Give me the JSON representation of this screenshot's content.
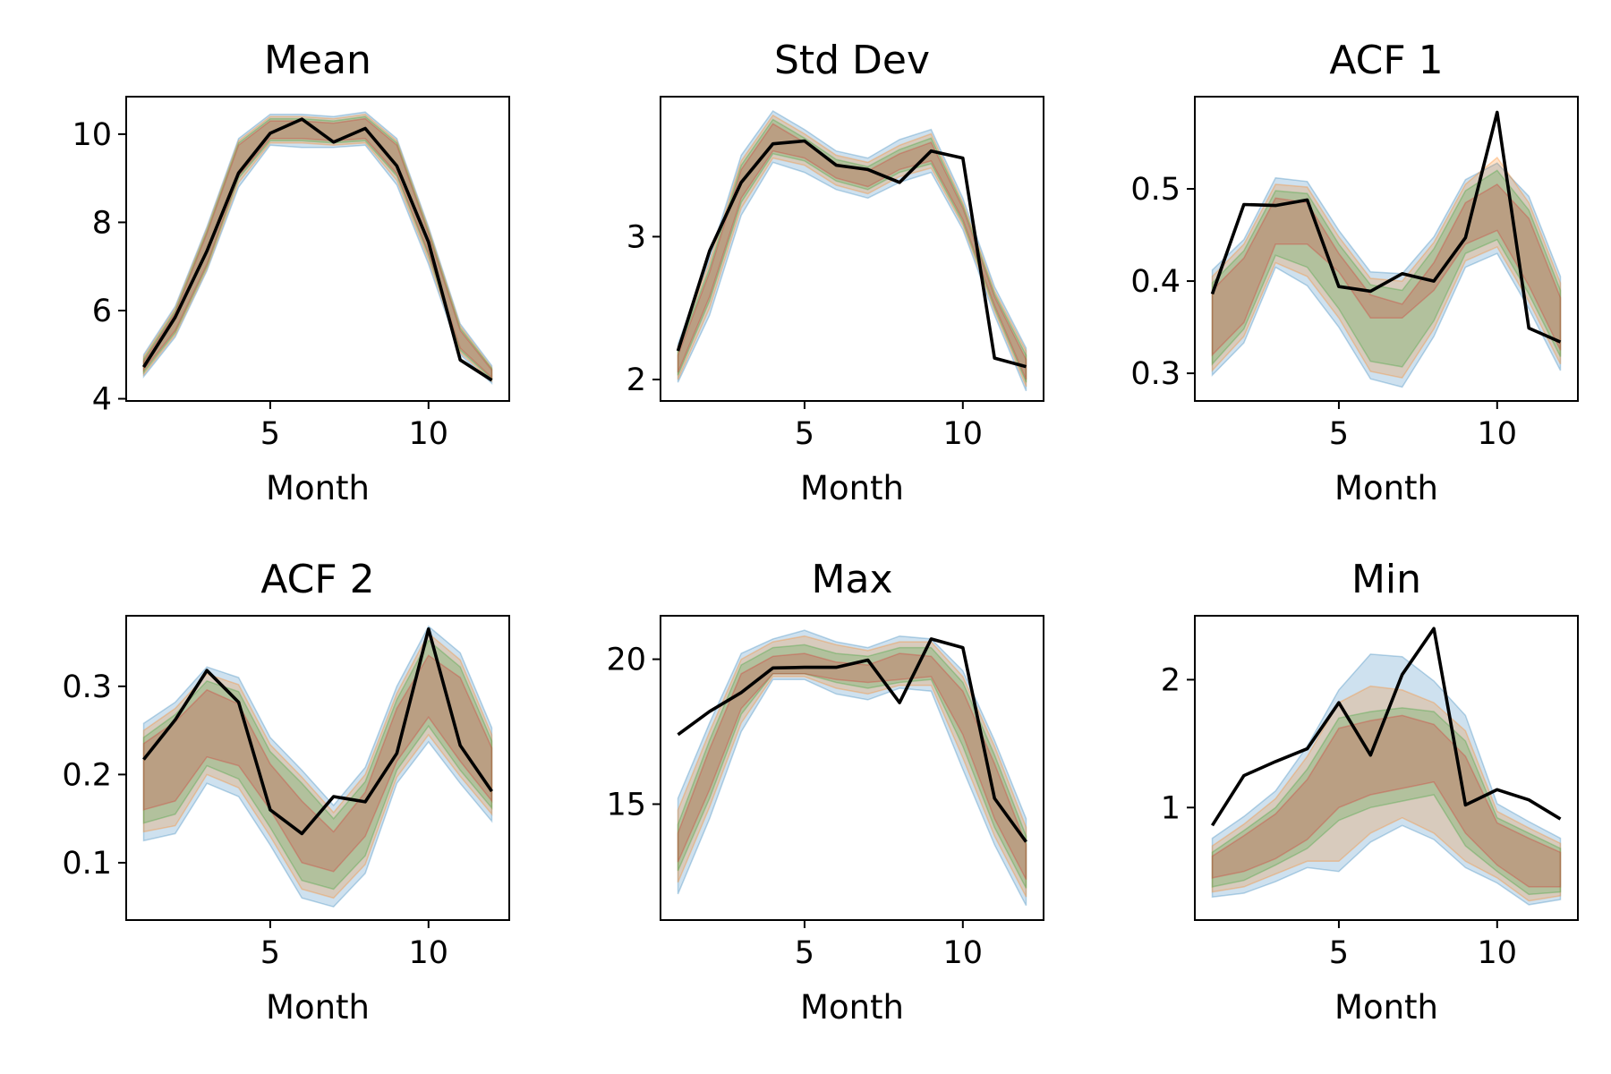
{
  "band_colors": {
    "blue": "#1f77b4",
    "orange": "#ff7f0e",
    "green": "#2ca02c",
    "red": "#d62728",
    "line": "#000000"
  },
  "chart_data": [
    {
      "type": "line",
      "title": "Mean",
      "xlabel": "Month",
      "ylabel": "",
      "x": [
        1,
        2,
        3,
        4,
        5,
        6,
        7,
        8,
        9,
        10,
        11,
        12
      ],
      "xlim": [
        0.45,
        12.55
      ],
      "ylim": [
        3.95,
        10.85
      ],
      "xticks": [
        5,
        10
      ],
      "yticks": [
        4,
        6,
        8,
        10
      ],
      "series": [
        {
          "values": [
            4.72,
            5.85,
            7.35,
            9.12,
            10.02,
            10.34,
            9.82,
            10.13,
            9.28,
            7.55,
            4.88,
            4.42
          ]
        }
      ],
      "bands": [
        {
          "color": "#1f77b4",
          "lower": [
            4.5,
            5.4,
            6.9,
            8.8,
            9.75,
            9.7,
            9.7,
            9.75,
            8.85,
            7.05,
            5.0,
            4.35
          ],
          "upper": [
            5.0,
            6.1,
            7.9,
            9.9,
            10.45,
            10.45,
            10.4,
            10.5,
            9.9,
            7.9,
            5.7,
            4.75
          ]
        },
        {
          "color": "#ff7f0e",
          "lower": [
            4.55,
            5.45,
            6.95,
            8.9,
            9.8,
            9.8,
            9.75,
            9.8,
            8.95,
            7.15,
            5.05,
            4.4
          ],
          "upper": [
            4.95,
            6.05,
            7.85,
            9.85,
            10.4,
            10.4,
            10.35,
            10.45,
            9.85,
            7.85,
            5.65,
            4.7
          ]
        },
        {
          "color": "#2ca02c",
          "lower": [
            4.6,
            5.5,
            7.0,
            9.0,
            9.85,
            9.85,
            9.8,
            9.85,
            9.05,
            7.25,
            5.1,
            4.45
          ],
          "upper": [
            4.9,
            6.0,
            7.8,
            9.8,
            10.35,
            10.35,
            10.3,
            10.4,
            9.8,
            7.8,
            5.6,
            4.68
          ]
        },
        {
          "color": "#d62728",
          "lower": [
            4.65,
            5.55,
            7.05,
            9.05,
            9.9,
            9.9,
            9.85,
            9.9,
            9.1,
            7.3,
            5.15,
            4.48
          ],
          "upper": [
            4.85,
            5.95,
            7.75,
            9.75,
            10.3,
            10.3,
            10.25,
            10.35,
            9.75,
            7.75,
            5.55,
            4.65
          ]
        }
      ]
    },
    {
      "type": "line",
      "title": "Std Dev",
      "xlabel": "Month",
      "ylabel": "",
      "x": [
        1,
        2,
        3,
        4,
        5,
        6,
        7,
        8,
        9,
        10,
        11,
        12
      ],
      "xlim": [
        0.45,
        12.55
      ],
      "ylim": [
        1.85,
        3.98
      ],
      "xticks": [
        5,
        10
      ],
      "yticks": [
        2,
        3
      ],
      "series": [
        {
          "values": [
            2.2,
            2.9,
            3.38,
            3.65,
            3.67,
            3.5,
            3.47,
            3.38,
            3.6,
            3.55,
            2.15,
            2.09
          ]
        }
      ],
      "bands": [
        {
          "color": "#1f77b4",
          "lower": [
            1.98,
            2.45,
            3.15,
            3.52,
            3.45,
            3.33,
            3.27,
            3.38,
            3.45,
            3.05,
            2.45,
            1.92
          ],
          "upper": [
            2.25,
            2.85,
            3.57,
            3.88,
            3.75,
            3.6,
            3.55,
            3.68,
            3.75,
            3.27,
            2.65,
            2.22
          ]
        },
        {
          "color": "#ff7f0e",
          "lower": [
            2.0,
            2.5,
            3.2,
            3.55,
            3.5,
            3.36,
            3.3,
            3.42,
            3.48,
            3.08,
            2.48,
            1.95
          ],
          "upper": [
            2.23,
            2.82,
            3.53,
            3.85,
            3.72,
            3.57,
            3.52,
            3.64,
            3.72,
            3.24,
            2.62,
            2.2
          ]
        },
        {
          "color": "#2ca02c",
          "lower": [
            2.03,
            2.55,
            3.24,
            3.58,
            3.53,
            3.39,
            3.33,
            3.45,
            3.51,
            3.1,
            2.5,
            1.98
          ],
          "upper": [
            2.2,
            2.78,
            3.5,
            3.82,
            3.69,
            3.54,
            3.49,
            3.61,
            3.69,
            3.22,
            2.6,
            2.17
          ]
        },
        {
          "color": "#d62728",
          "lower": [
            2.05,
            2.58,
            3.27,
            3.6,
            3.55,
            3.41,
            3.35,
            3.47,
            3.53,
            3.12,
            2.52,
            2.0
          ],
          "upper": [
            2.17,
            2.75,
            3.47,
            3.79,
            3.66,
            3.51,
            3.46,
            3.58,
            3.66,
            3.2,
            2.58,
            2.14
          ]
        }
      ]
    },
    {
      "type": "line",
      "title": "ACF 1",
      "xlabel": "Month",
      "ylabel": "",
      "x": [
        1,
        2,
        3,
        4,
        5,
        6,
        7,
        8,
        9,
        10,
        11,
        12
      ],
      "xlim": [
        0.45,
        12.55
      ],
      "ylim": [
        0.27,
        0.6
      ],
      "xticks": [
        5,
        10
      ],
      "yticks": [
        0.3,
        0.4,
        0.5
      ],
      "series": [
        {
          "values": [
            0.386,
            0.483,
            0.482,
            0.488,
            0.394,
            0.389,
            0.408,
            0.4,
            0.447,
            0.583,
            0.349,
            0.334
          ]
        }
      ],
      "bands": [
        {
          "color": "#1f77b4",
          "lower": [
            0.298,
            0.333,
            0.415,
            0.395,
            0.35,
            0.294,
            0.285,
            0.34,
            0.415,
            0.43,
            0.37,
            0.303
          ],
          "upper": [
            0.412,
            0.445,
            0.512,
            0.508,
            0.455,
            0.41,
            0.408,
            0.448,
            0.51,
            0.528,
            0.492,
            0.405
          ]
        },
        {
          "color": "#ff7f0e",
          "lower": [
            0.303,
            0.34,
            0.42,
            0.405,
            0.36,
            0.302,
            0.295,
            0.348,
            0.422,
            0.437,
            0.378,
            0.31
          ],
          "upper": [
            0.405,
            0.44,
            0.505,
            0.502,
            0.448,
            0.403,
            0.4,
            0.442,
            0.505,
            0.534,
            0.485,
            0.398
          ]
        },
        {
          "color": "#2ca02c",
          "lower": [
            0.31,
            0.348,
            0.428,
            0.415,
            0.37,
            0.313,
            0.307,
            0.357,
            0.43,
            0.445,
            0.386,
            0.318
          ],
          "upper": [
            0.398,
            0.433,
            0.498,
            0.495,
            0.44,
            0.396,
            0.39,
            0.435,
            0.498,
            0.52,
            0.477,
            0.39
          ]
        },
        {
          "color": "#d62728",
          "lower": [
            0.32,
            0.355,
            0.44,
            0.44,
            0.41,
            0.36,
            0.36,
            0.39,
            0.44,
            0.455,
            0.395,
            0.325
          ],
          "upper": [
            0.39,
            0.425,
            0.49,
            0.485,
            0.43,
            0.385,
            0.375,
            0.42,
            0.485,
            0.505,
            0.468,
            0.382
          ]
        }
      ]
    },
    {
      "type": "line",
      "title": "ACF 2",
      "xlabel": "Month",
      "ylabel": "",
      "x": [
        1,
        2,
        3,
        4,
        5,
        6,
        7,
        8,
        9,
        10,
        11,
        12
      ],
      "xlim": [
        0.45,
        12.55
      ],
      "ylim": [
        0.035,
        0.38
      ],
      "xticks": [
        5,
        10
      ],
      "yticks": [
        0.1,
        0.2,
        0.3
      ],
      "series": [
        {
          "values": [
            0.217,
            0.262,
            0.318,
            0.282,
            0.16,
            0.133,
            0.175,
            0.169,
            0.224,
            0.365,
            0.233,
            0.181
          ]
        }
      ],
      "bands": [
        {
          "color": "#1f77b4",
          "lower": [
            0.125,
            0.133,
            0.19,
            0.175,
            0.12,
            0.06,
            0.05,
            0.088,
            0.19,
            0.237,
            0.19,
            0.147
          ],
          "upper": [
            0.258,
            0.282,
            0.322,
            0.31,
            0.242,
            0.205,
            0.165,
            0.208,
            0.3,
            0.368,
            0.338,
            0.253
          ]
        },
        {
          "color": "#ff7f0e",
          "lower": [
            0.135,
            0.142,
            0.2,
            0.185,
            0.13,
            0.07,
            0.06,
            0.098,
            0.197,
            0.245,
            0.198,
            0.155
          ],
          "upper": [
            0.25,
            0.275,
            0.314,
            0.302,
            0.234,
            0.197,
            0.157,
            0.2,
            0.292,
            0.36,
            0.33,
            0.245
          ]
        },
        {
          "color": "#2ca02c",
          "lower": [
            0.145,
            0.155,
            0.21,
            0.195,
            0.14,
            0.08,
            0.07,
            0.108,
            0.205,
            0.255,
            0.205,
            0.162
          ],
          "upper": [
            0.242,
            0.268,
            0.306,
            0.294,
            0.226,
            0.19,
            0.15,
            0.192,
            0.285,
            0.352,
            0.322,
            0.238
          ]
        },
        {
          "color": "#d62728",
          "lower": [
            0.16,
            0.17,
            0.22,
            0.21,
            0.16,
            0.1,
            0.09,
            0.13,
            0.215,
            0.265,
            0.215,
            0.17
          ],
          "upper": [
            0.235,
            0.26,
            0.296,
            0.28,
            0.212,
            0.17,
            0.135,
            0.18,
            0.275,
            0.335,
            0.31,
            0.23
          ]
        }
      ]
    },
    {
      "type": "line",
      "title": "Max",
      "xlabel": "Month",
      "ylabel": "",
      "x": [
        1,
        2,
        3,
        4,
        5,
        6,
        7,
        8,
        9,
        10,
        11,
        12
      ],
      "xlim": [
        0.45,
        12.55
      ],
      "ylim": [
        11.0,
        21.5
      ],
      "xticks": [
        5,
        10
      ],
      "yticks": [
        15,
        20
      ],
      "series": [
        {
          "values": [
            17.4,
            18.2,
            18.85,
            19.7,
            19.72,
            19.72,
            19.97,
            18.5,
            20.7,
            20.4,
            15.2,
            13.7
          ]
        }
      ],
      "bands": [
        {
          "color": "#1f77b4",
          "lower": [
            11.9,
            14.5,
            17.5,
            19.3,
            19.3,
            18.8,
            18.6,
            19.0,
            18.9,
            16.2,
            13.6,
            11.5
          ],
          "upper": [
            15.2,
            17.8,
            20.2,
            20.7,
            21.0,
            20.6,
            20.4,
            20.8,
            20.7,
            19.6,
            17.2,
            14.5
          ]
        },
        {
          "color": "#ff7f0e",
          "lower": [
            12.3,
            14.9,
            17.8,
            19.4,
            19.4,
            19.0,
            18.8,
            19.1,
            19.1,
            16.6,
            13.9,
            11.8
          ],
          "upper": [
            14.8,
            17.5,
            20.0,
            20.6,
            20.8,
            20.5,
            20.3,
            20.6,
            20.6,
            19.4,
            17.0,
            14.2
          ]
        },
        {
          "color": "#2ca02c",
          "lower": [
            12.7,
            15.2,
            18.1,
            19.5,
            19.5,
            19.2,
            19.0,
            19.2,
            19.3,
            17.0,
            14.2,
            12.1
          ],
          "upper": [
            14.3,
            17.2,
            19.8,
            20.4,
            20.5,
            20.2,
            20.1,
            20.4,
            20.4,
            19.2,
            16.7,
            13.9
          ]
        },
        {
          "color": "#d62728",
          "lower": [
            13.0,
            15.5,
            18.3,
            19.5,
            19.5,
            19.3,
            19.2,
            19.3,
            19.4,
            17.4,
            14.5,
            12.4
          ],
          "upper": [
            14.0,
            16.9,
            19.5,
            20.1,
            20.2,
            19.9,
            19.8,
            20.2,
            20.1,
            18.9,
            16.4,
            13.6
          ]
        }
      ]
    },
    {
      "type": "line",
      "title": "Min",
      "xlabel": "Month",
      "ylabel": "",
      "x": [
        1,
        2,
        3,
        4,
        5,
        6,
        7,
        8,
        9,
        10,
        11,
        12
      ],
      "xlim": [
        0.45,
        12.55
      ],
      "ylim": [
        0.12,
        2.5
      ],
      "xticks": [
        5,
        10
      ],
      "yticks": [
        1,
        2
      ],
      "series": [
        {
          "values": [
            0.86,
            1.25,
            1.36,
            1.46,
            1.82,
            1.41,
            2.04,
            2.4,
            1.02,
            1.14,
            1.06,
            0.91
          ]
        }
      ],
      "bands": [
        {
          "color": "#1f77b4",
          "lower": [
            0.3,
            0.33,
            0.42,
            0.53,
            0.5,
            0.73,
            0.86,
            0.75,
            0.53,
            0.41,
            0.24,
            0.28
          ],
          "upper": [
            0.76,
            0.93,
            1.13,
            1.48,
            1.92,
            2.2,
            2.18,
            1.99,
            1.72,
            1.03,
            0.89,
            0.76
          ]
        },
        {
          "color": "#ff7f0e",
          "lower": [
            0.34,
            0.38,
            0.48,
            0.58,
            0.58,
            0.8,
            0.92,
            0.8,
            0.58,
            0.45,
            0.27,
            0.31
          ],
          "upper": [
            0.7,
            0.87,
            1.07,
            1.4,
            1.82,
            1.95,
            1.92,
            1.82,
            1.6,
            0.97,
            0.84,
            0.72
          ]
        },
        {
          "color": "#2ca02c",
          "lower": [
            0.38,
            0.43,
            0.55,
            0.68,
            0.9,
            1.0,
            1.05,
            1.1,
            0.7,
            0.5,
            0.32,
            0.34
          ],
          "upper": [
            0.65,
            0.82,
            1.0,
            1.3,
            1.7,
            1.75,
            1.78,
            1.75,
            1.52,
            0.92,
            0.8,
            0.68
          ]
        },
        {
          "color": "#d62728",
          "lower": [
            0.45,
            0.5,
            0.6,
            0.75,
            1.0,
            1.1,
            1.15,
            1.2,
            0.8,
            0.55,
            0.38,
            0.38
          ],
          "upper": [
            0.62,
            0.78,
            0.95,
            1.22,
            1.62,
            1.68,
            1.72,
            1.65,
            1.4,
            0.88,
            0.76,
            0.65
          ]
        }
      ]
    }
  ]
}
